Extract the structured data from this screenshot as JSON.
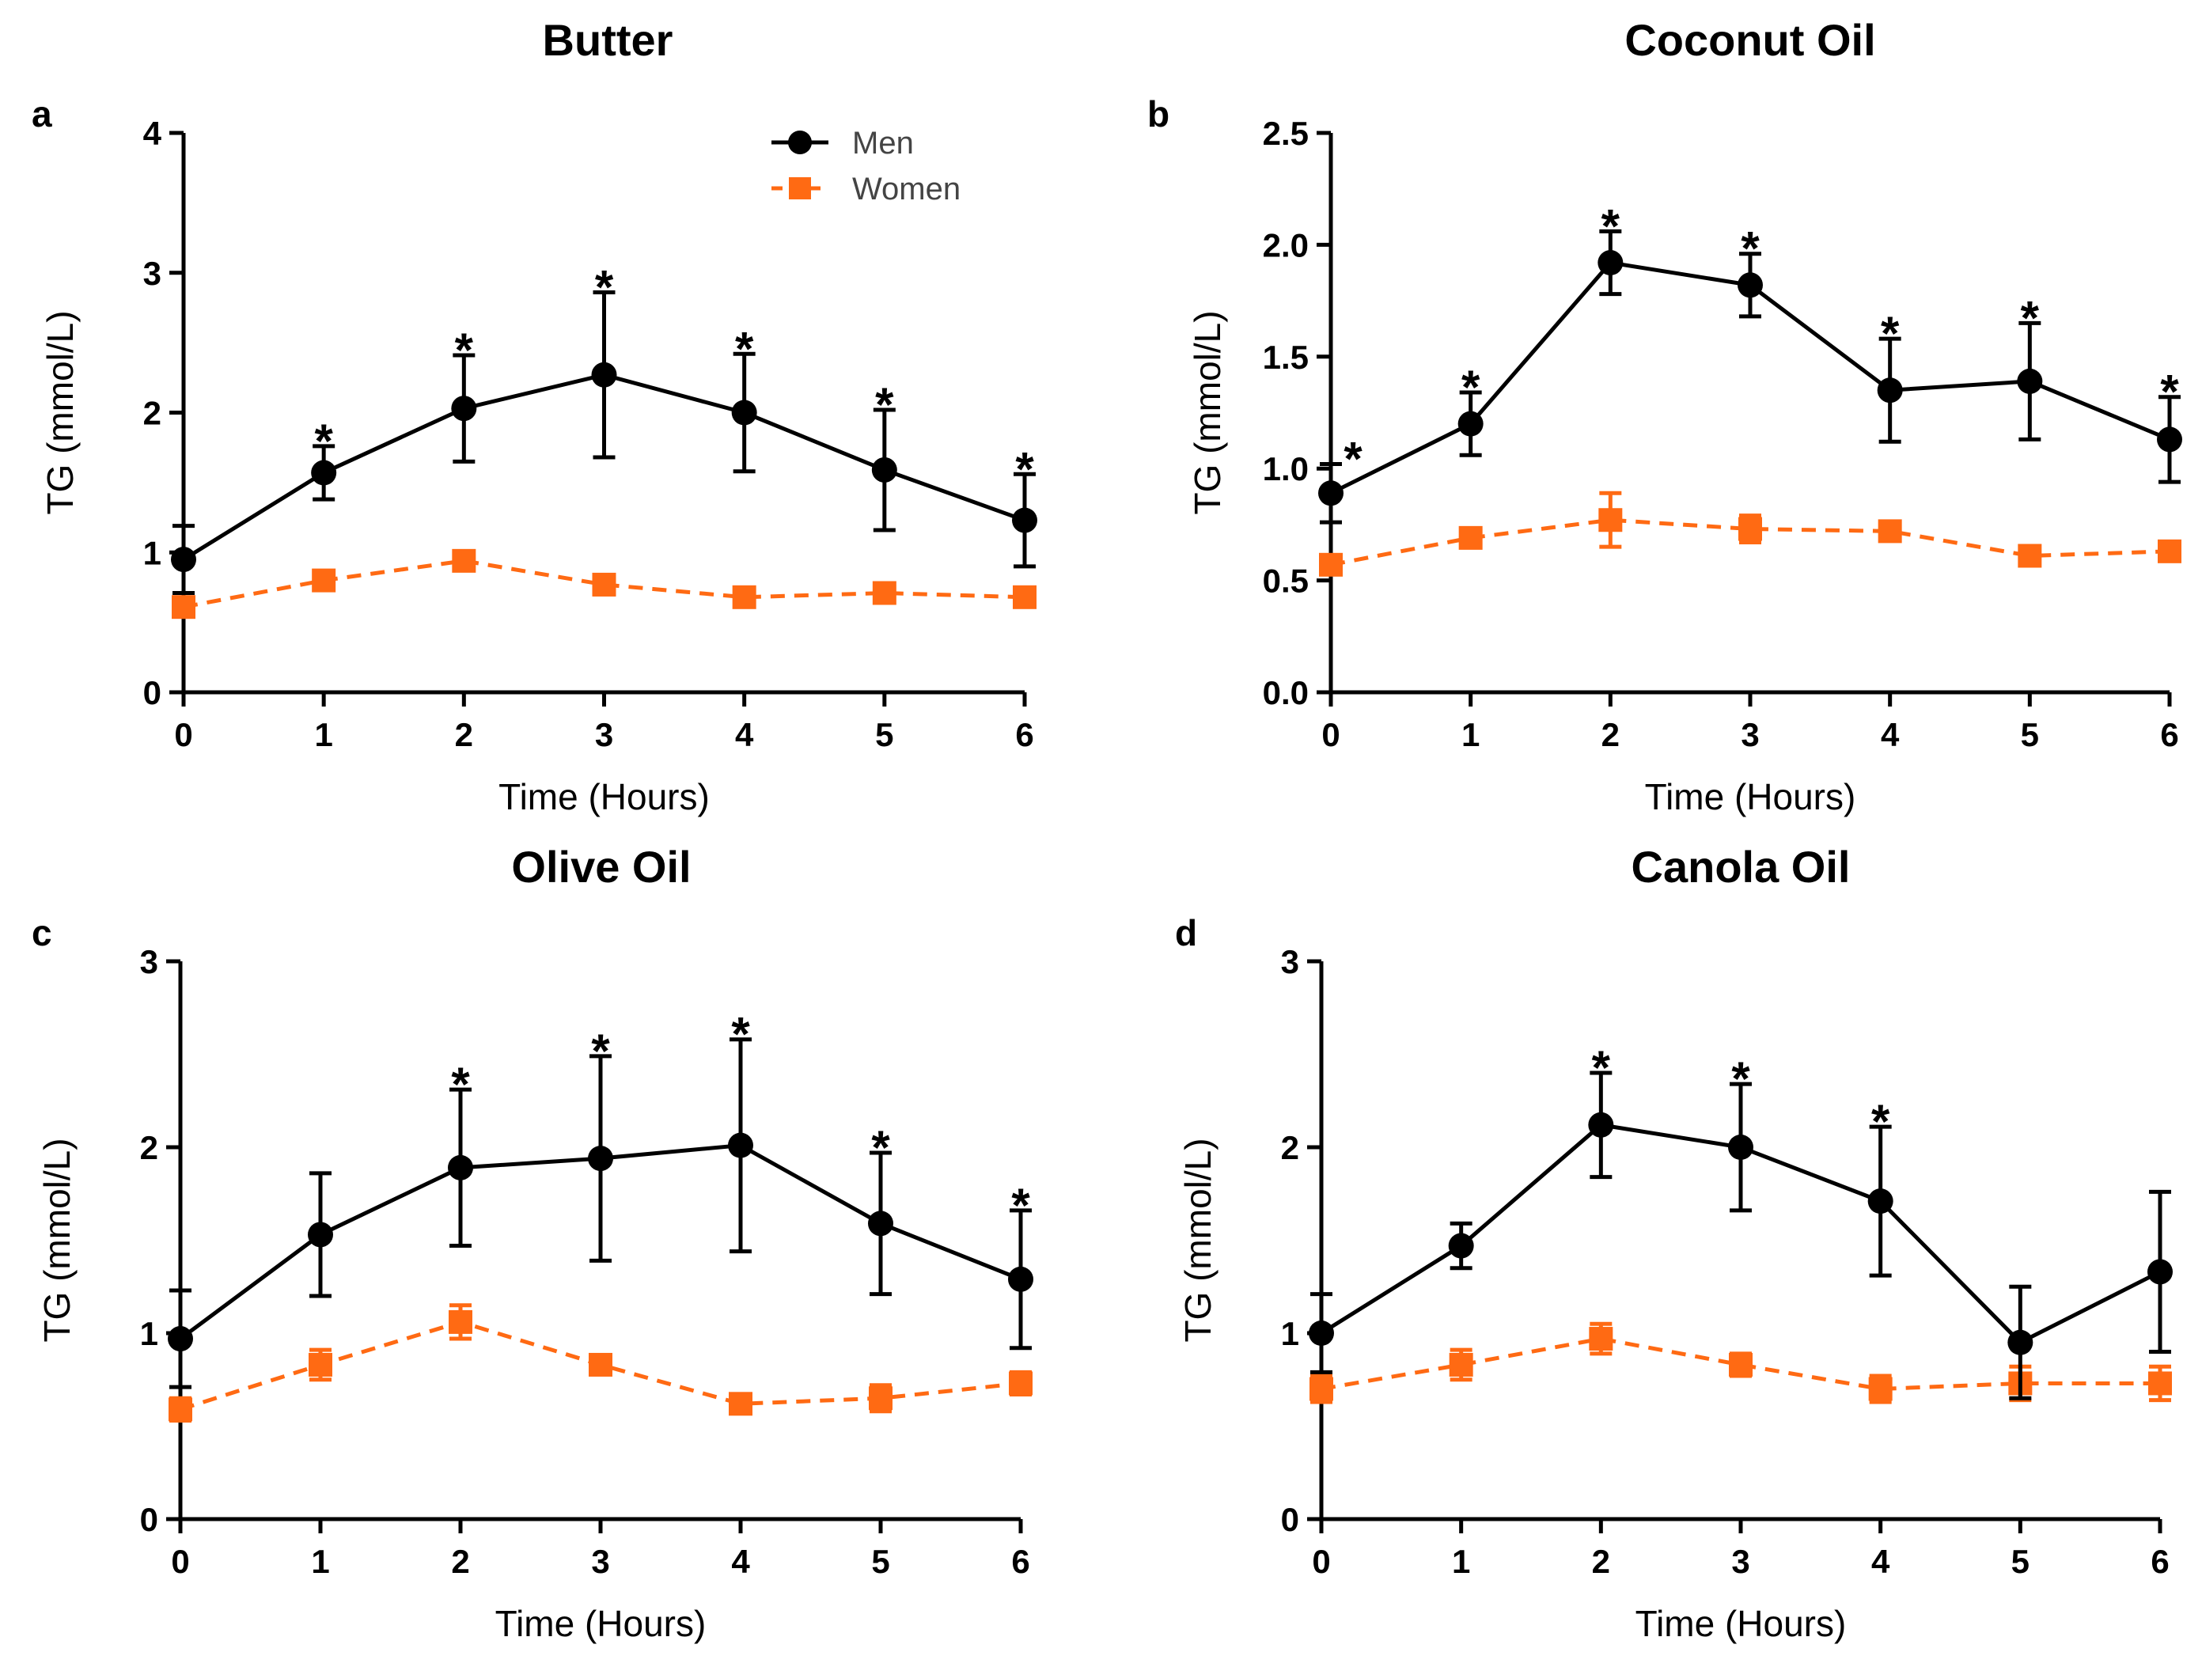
{
  "colors": {
    "men": "#000000",
    "women": "#FF6A13",
    "axis": "#000000"
  },
  "legend": {
    "men": "Men",
    "women": "Women"
  },
  "chart_data": [
    {
      "type": "line",
      "panel": "a",
      "title": "Butter",
      "xlabel": "Time (Hours)",
      "ylabel": "TG (mmol/L)",
      "x": [
        0,
        1,
        2,
        3,
        4,
        5,
        6
      ],
      "xlim": [
        0,
        6
      ],
      "ylim": [
        0,
        4
      ],
      "yticks": [
        0,
        1,
        2,
        3,
        4
      ],
      "ytick_labels": [
        "0",
        "1",
        "2",
        "3",
        "4"
      ],
      "legend_position": "top-right",
      "series": [
        {
          "name": "Men",
          "values": [
            0.95,
            1.57,
            2.03,
            2.27,
            2.0,
            1.59,
            1.23
          ],
          "err": [
            0.24,
            0.19,
            0.38,
            0.59,
            0.42,
            0.43,
            0.33
          ]
        },
        {
          "name": "Women",
          "values": [
            0.61,
            0.8,
            0.94,
            0.77,
            0.68,
            0.71,
            0.68
          ],
          "err": [
            0.06,
            0.05,
            0.04,
            0.07,
            0.04,
            0.04,
            0.04
          ]
        }
      ],
      "significant": [
        false,
        true,
        true,
        true,
        true,
        true,
        true
      ],
      "annotation": "*"
    },
    {
      "type": "line",
      "panel": "b",
      "title": "Coconut Oil",
      "xlabel": "Time (Hours)",
      "ylabel": "TG (mmol/L)",
      "x": [
        0,
        1,
        2,
        3,
        4,
        5,
        6
      ],
      "xlim": [
        0,
        6
      ],
      "ylim": [
        0,
        2.5
      ],
      "yticks": [
        0,
        0.5,
        1.0,
        1.5,
        2.0,
        2.5
      ],
      "ytick_labels": [
        "0.0",
        "0.5",
        "1.0",
        "1.5",
        "2.0",
        "2.5"
      ],
      "series": [
        {
          "name": "Men",
          "values": [
            0.89,
            1.2,
            1.92,
            1.82,
            1.35,
            1.39,
            1.13
          ],
          "err": [
            0.13,
            0.14,
            0.14,
            0.14,
            0.23,
            0.26,
            0.19
          ]
        },
        {
          "name": "Women",
          "values": [
            0.57,
            0.69,
            0.77,
            0.73,
            0.72,
            0.61,
            0.63
          ],
          "err": [
            0.04,
            0.04,
            0.12,
            0.06,
            0.03,
            0.03,
            0.03
          ]
        }
      ],
      "significant": [
        true,
        true,
        true,
        true,
        true,
        true,
        true
      ],
      "annotation": "*"
    },
    {
      "type": "line",
      "panel": "c",
      "title": "Olive Oil",
      "xlabel": "Time (Hours)",
      "ylabel": "TG (mmol/L)",
      "x": [
        0,
        1,
        2,
        3,
        4,
        5,
        6
      ],
      "xlim": [
        0,
        6
      ],
      "ylim": [
        0,
        3
      ],
      "yticks": [
        0,
        1,
        2,
        3
      ],
      "ytick_labels": [
        "0",
        "1",
        "2",
        "3"
      ],
      "series": [
        {
          "name": "Men",
          "values": [
            0.97,
            1.53,
            1.89,
            1.94,
            2.01,
            1.59,
            1.29
          ],
          "err": [
            0.26,
            0.33,
            0.42,
            0.55,
            0.57,
            0.38,
            0.37
          ]
        },
        {
          "name": "Women",
          "values": [
            0.59,
            0.83,
            1.06,
            0.83,
            0.62,
            0.65,
            0.73
          ],
          "err": [
            0.06,
            0.08,
            0.09,
            0.04,
            0.04,
            0.07,
            0.06
          ]
        }
      ],
      "significant": [
        false,
        false,
        true,
        true,
        true,
        true,
        true
      ],
      "annotation": "*"
    },
    {
      "type": "line",
      "panel": "d",
      "title": "Canola Oil",
      "xlabel": "Time (Hours)",
      "ylabel": "TG (mmol/L)",
      "x": [
        0,
        1,
        2,
        3,
        4,
        5,
        6
      ],
      "xlim": [
        0,
        6
      ],
      "ylim": [
        0,
        3
      ],
      "yticks": [
        0,
        1,
        2,
        3
      ],
      "ytick_labels": [
        "0",
        "1",
        "2",
        "3"
      ],
      "series": [
        {
          "name": "Men",
          "values": [
            1.0,
            1.47,
            2.12,
            2.0,
            1.71,
            0.95,
            1.33
          ],
          "err": [
            0.21,
            0.12,
            0.28,
            0.34,
            0.4,
            0.3,
            0.43
          ]
        },
        {
          "name": "Women",
          "values": [
            0.7,
            0.83,
            0.97,
            0.83,
            0.7,
            0.73,
            0.73
          ],
          "err": [
            0.07,
            0.08,
            0.08,
            0.06,
            0.07,
            0.09,
            0.09
          ]
        }
      ],
      "significant": [
        false,
        false,
        true,
        true,
        true,
        false,
        false
      ],
      "annotation": "*"
    }
  ]
}
